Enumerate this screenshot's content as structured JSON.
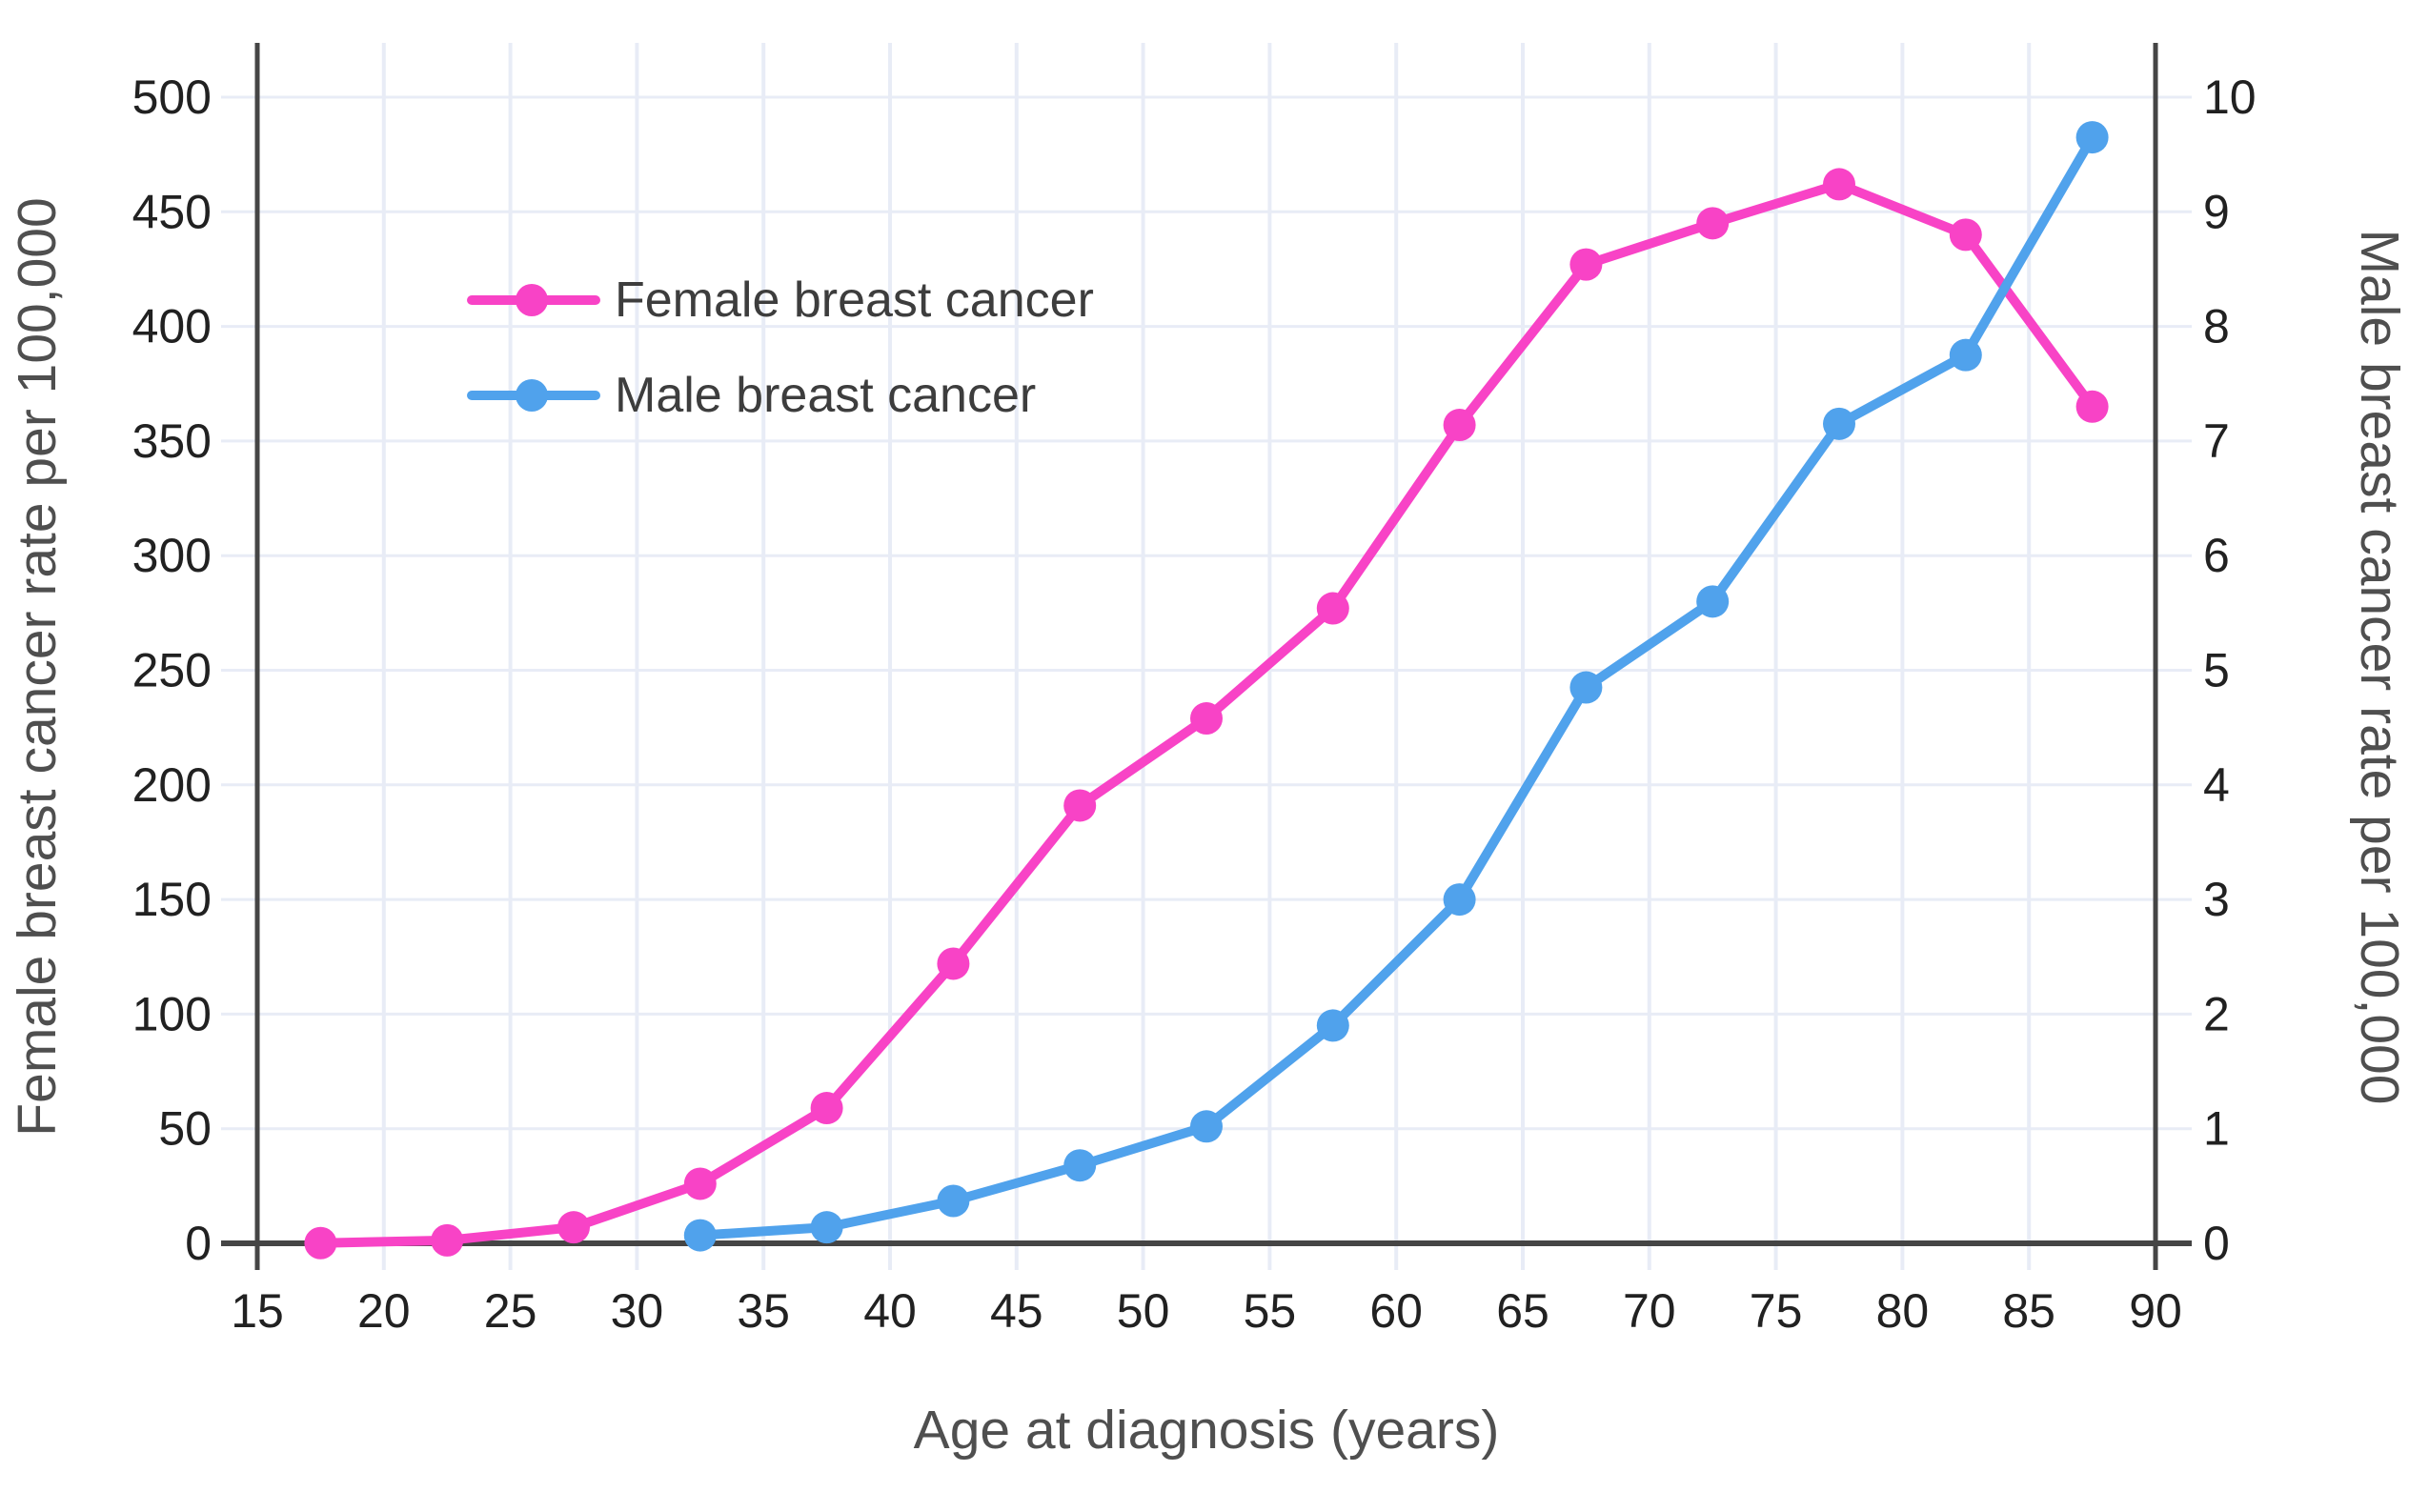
{
  "chart_data": {
    "type": "line",
    "title": "",
    "xlabel": "Age at diagnosis (years)",
    "ylabel_left": "Female breast cancer rate per 100,000",
    "ylabel_right": "Male breast cancer rate per 100,000",
    "xlim": [
      15,
      90
    ],
    "ylim_left": [
      0,
      500
    ],
    "ylim_right": [
      0,
      10
    ],
    "x_ticks": [
      15,
      20,
      25,
      30,
      35,
      40,
      45,
      50,
      55,
      60,
      65,
      70,
      75,
      80,
      85,
      90
    ],
    "y_ticks_left": [
      0,
      50,
      100,
      150,
      200,
      250,
      300,
      350,
      400,
      450,
      500
    ],
    "y_ticks_right": [
      0,
      1,
      2,
      3,
      4,
      5,
      6,
      7,
      8,
      9,
      10
    ],
    "grid": true,
    "legend_position": "upper-left-inside",
    "series": [
      {
        "name": "Female breast cancer",
        "axis": "left",
        "color": "#f843c6",
        "x": [
          17.5,
          22.5,
          27.5,
          32.5,
          37.5,
          42.5,
          47.5,
          52.5,
          57.5,
          62.5,
          67.5,
          72.5,
          77.5,
          82.5,
          87.5
        ],
        "values": [
          0.1,
          1.3,
          7,
          26,
          59,
          122,
          191,
          229,
          277,
          357,
          427,
          445,
          462,
          440,
          365
        ]
      },
      {
        "name": "Male breast cancer",
        "axis": "right",
        "color": "#50a2ec",
        "x": [
          32.5,
          37.5,
          42.5,
          47.5,
          52.5,
          57.5,
          62.5,
          67.5,
          72.5,
          77.5,
          82.5,
          87.5
        ],
        "values": [
          0.07,
          0.14,
          0.37,
          0.68,
          1.02,
          1.9,
          3.0,
          4.85,
          5.6,
          7.15,
          7.75,
          9.65
        ]
      }
    ],
    "style": {
      "gridline_color": "#e8ecf6",
      "axis_color": "#454545",
      "tick_label_color": "#212121",
      "axis_title_color": "#4f4f4f",
      "legend_text_color": "#3d3d3d",
      "background_color": "#ffffff"
    }
  }
}
